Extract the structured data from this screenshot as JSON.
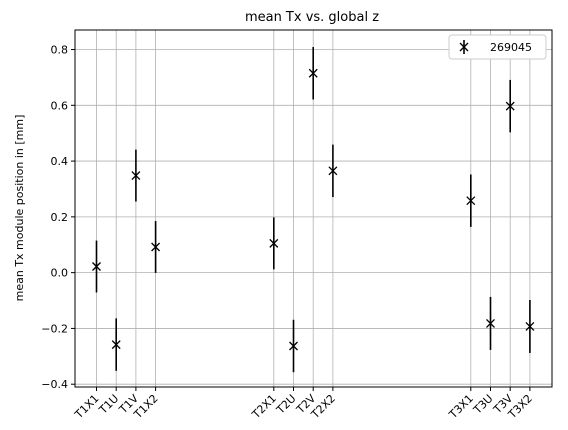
{
  "chart_data": {
    "type": "scatter",
    "title": "mean Tx vs. global z",
    "xlabel": "",
    "ylabel": "mean Tx module position in [mm]",
    "ylim": [
      -0.41,
      0.87
    ],
    "yticks": [
      -0.4,
      -0.2,
      0.0,
      0.2,
      0.4,
      0.6,
      0.8
    ],
    "ytick_labels": [
      "−0.4",
      "−0.2",
      "0.0",
      "0.2",
      "0.4",
      "0.6",
      "0.8"
    ],
    "grid": true,
    "legend_position": "top-right",
    "categories": [
      "T1X1",
      "T1U",
      "T1V",
      "T1X2",
      "T2X1",
      "T2U",
      "T2V",
      "T2X2",
      "T3X1",
      "T3U",
      "T3V",
      "T3X2"
    ],
    "series": [
      {
        "name": "269045",
        "color": "#000000",
        "marker": "x",
        "values": [
          0.022,
          -0.258,
          0.348,
          0.092,
          0.105,
          -0.263,
          0.715,
          0.365,
          0.258,
          -0.182,
          0.597,
          -0.193
        ],
        "errors": [
          0.093,
          0.094,
          0.093,
          0.093,
          0.093,
          0.094,
          0.094,
          0.094,
          0.094,
          0.095,
          0.094,
          0.095
        ]
      }
    ]
  },
  "x_positions_note_free": [
    0,
    1,
    2,
    3,
    9,
    10,
    11,
    12,
    19,
    20,
    21,
    22
  ]
}
